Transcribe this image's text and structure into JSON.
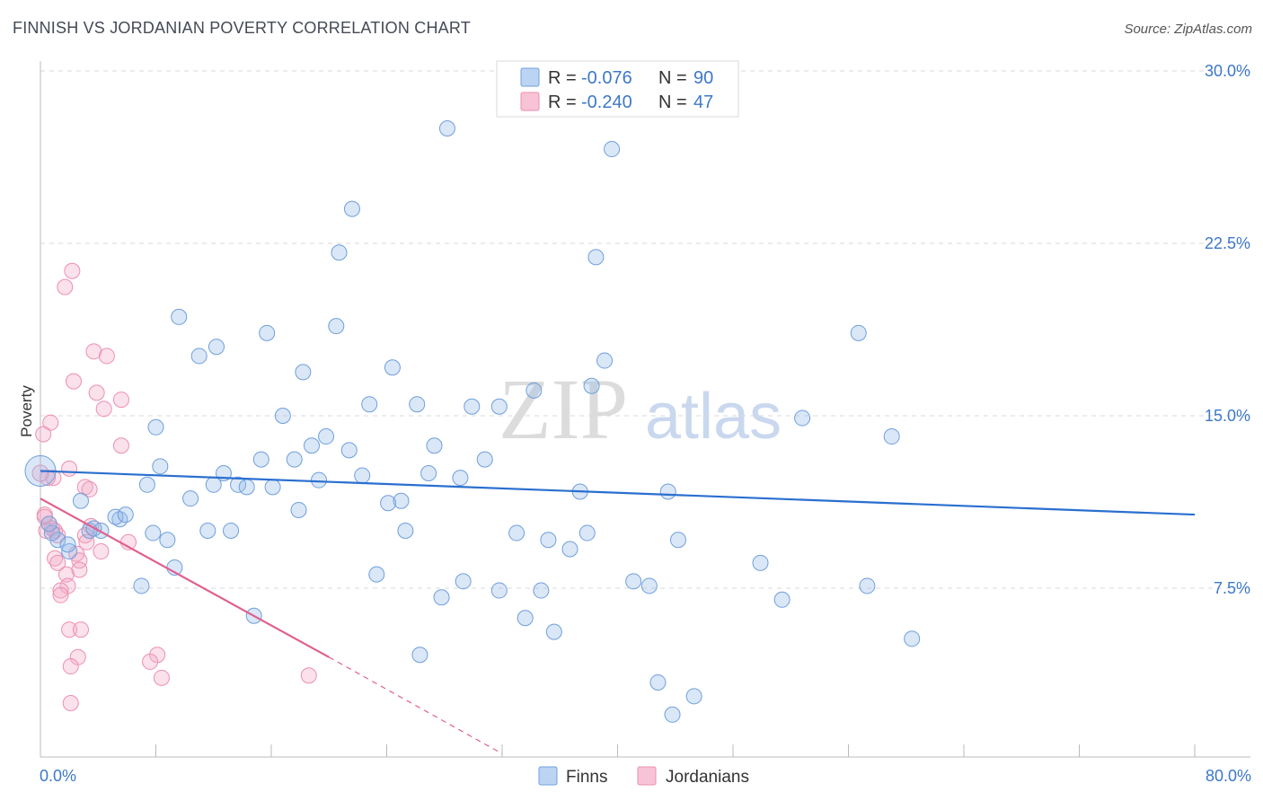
{
  "header": {
    "title": "FINNISH VS JORDANIAN POVERTY CORRELATION CHART",
    "source": "Source: ZipAtlas.com"
  },
  "watermark": {
    "zip": "ZIP",
    "atlas": "atlas"
  },
  "legend": {
    "r_label": "R =",
    "n_label": "N =",
    "finns": {
      "r": "-0.076",
      "n": "90"
    },
    "jordanians": {
      "r": "-0.240",
      "n": "47"
    }
  },
  "bottom_legend": {
    "finns": "Finns",
    "jordanians": "Jordanians"
  },
  "chart_data": {
    "type": "scatter",
    "title": "FINNISH VS JORDANIAN POVERTY CORRELATION CHART",
    "xlabel": "",
    "ylabel": "Poverty",
    "xlim": [
      0,
      80
    ],
    "ylim": [
      0,
      31
    ],
    "x_tick_labels": [
      "0.0%",
      "80.0%"
    ],
    "y_ticks": [
      7.5,
      15.0,
      22.5,
      30.0
    ],
    "y_tick_labels": [
      "7.5%",
      "15.0%",
      "22.5%",
      "30.0%"
    ],
    "colors": {
      "finns": "#6f9fdc",
      "jordanians": "#ec8fb0",
      "finns_line": "#2a6fcf",
      "jordanians_line": "#e0608e"
    },
    "series": [
      {
        "name": "Finns",
        "trend": {
          "x0": 0,
          "y0": 12.6,
          "x1": 80,
          "y1": 10.7
        },
        "points": [
          [
            28.2,
            27.5
          ],
          [
            39.6,
            26.6
          ],
          [
            21.6,
            24.0
          ],
          [
            20.7,
            22.1
          ],
          [
            38.5,
            21.9
          ],
          [
            9.6,
            19.3
          ],
          [
            15.7,
            18.6
          ],
          [
            20.5,
            18.9
          ],
          [
            56.7,
            18.6
          ],
          [
            12.2,
            18.0
          ],
          [
            11.0,
            17.6
          ],
          [
            39.1,
            17.4
          ],
          [
            18.2,
            16.9
          ],
          [
            24.4,
            17.1
          ],
          [
            38.2,
            16.3
          ],
          [
            34.2,
            16.1
          ],
          [
            22.8,
            15.5
          ],
          [
            26.1,
            15.5
          ],
          [
            29.9,
            15.4
          ],
          [
            31.8,
            15.4
          ],
          [
            16.8,
            15.0
          ],
          [
            52.8,
            14.9
          ],
          [
            8.0,
            14.5
          ],
          [
            19.8,
            14.1
          ],
          [
            59.0,
            14.1
          ],
          [
            18.8,
            13.7
          ],
          [
            21.4,
            13.5
          ],
          [
            27.3,
            13.7
          ],
          [
            15.3,
            13.1
          ],
          [
            17.6,
            13.1
          ],
          [
            30.8,
            13.1
          ],
          [
            8.3,
            12.8
          ],
          [
            12.7,
            12.5
          ],
          [
            22.3,
            12.4
          ],
          [
            26.9,
            12.5
          ],
          [
            29.1,
            12.3
          ],
          [
            7.4,
            12.0
          ],
          [
            12.0,
            12.0
          ],
          [
            13.7,
            12.0
          ],
          [
            14.3,
            11.9
          ],
          [
            16.1,
            11.9
          ],
          [
            19.3,
            12.2
          ],
          [
            37.4,
            11.7
          ],
          [
            43.5,
            11.7
          ],
          [
            2.8,
            11.3
          ],
          [
            10.4,
            11.4
          ],
          [
            24.1,
            11.2
          ],
          [
            25.0,
            11.3
          ],
          [
            17.9,
            10.9
          ],
          [
            5.5,
            10.5
          ],
          [
            5.2,
            10.6
          ],
          [
            5.9,
            10.7
          ],
          [
            4.2,
            10.0
          ],
          [
            3.4,
            10.0
          ],
          [
            1.2,
            9.6
          ],
          [
            0.8,
            9.9
          ],
          [
            7.8,
            9.9
          ],
          [
            11.6,
            10.0
          ],
          [
            13.2,
            10.0
          ],
          [
            25.3,
            10.0
          ],
          [
            33.0,
            9.9
          ],
          [
            37.9,
            9.9
          ],
          [
            8.8,
            9.6
          ],
          [
            35.2,
            9.6
          ],
          [
            44.2,
            9.6
          ],
          [
            36.7,
            9.2
          ],
          [
            2.0,
            9.1
          ],
          [
            9.3,
            8.4
          ],
          [
            49.9,
            8.6
          ],
          [
            23.3,
            8.1
          ],
          [
            7.0,
            7.6
          ],
          [
            29.3,
            7.8
          ],
          [
            41.1,
            7.8
          ],
          [
            42.2,
            7.6
          ],
          [
            31.8,
            7.4
          ],
          [
            34.7,
            7.4
          ],
          [
            27.8,
            7.1
          ],
          [
            51.4,
            7.0
          ],
          [
            57.3,
            7.6
          ],
          [
            14.8,
            6.3
          ],
          [
            33.6,
            6.2
          ],
          [
            35.6,
            5.6
          ],
          [
            60.4,
            5.3
          ],
          [
            26.3,
            4.6
          ],
          [
            42.8,
            3.4
          ],
          [
            45.3,
            2.8
          ],
          [
            43.8,
            2.0
          ],
          [
            3.7,
            10.1
          ],
          [
            1.9,
            9.4
          ],
          [
            0.6,
            10.3
          ]
        ]
      },
      {
        "name": "Jordanians",
        "trend": {
          "x0": 0,
          "y0": 11.4,
          "x1": 20,
          "y1": 4.5
        },
        "trend_dashed_to": {
          "x": 32,
          "y": 0.3
        },
        "points": [
          [
            2.2,
            21.3
          ],
          [
            1.7,
            20.6
          ],
          [
            3.7,
            17.8
          ],
          [
            4.6,
            17.6
          ],
          [
            2.3,
            16.5
          ],
          [
            3.9,
            16.0
          ],
          [
            5.6,
            15.7
          ],
          [
            4.4,
            15.3
          ],
          [
            0.7,
            14.7
          ],
          [
            0.2,
            14.2
          ],
          [
            5.6,
            13.7
          ],
          [
            2.0,
            12.7
          ],
          [
            0.9,
            12.3
          ],
          [
            0.5,
            12.3
          ],
          [
            3.1,
            11.9
          ],
          [
            3.4,
            11.8
          ],
          [
            0.3,
            10.7
          ],
          [
            0.6,
            10.3
          ],
          [
            0.8,
            10.1
          ],
          [
            1.0,
            10.0
          ],
          [
            3.5,
            10.2
          ],
          [
            0.4,
            10.0
          ],
          [
            1.2,
            9.8
          ],
          [
            3.1,
            9.8
          ],
          [
            3.2,
            9.5
          ],
          [
            6.1,
            9.5
          ],
          [
            4.2,
            9.1
          ],
          [
            2.5,
            9.0
          ],
          [
            1.0,
            8.8
          ],
          [
            2.7,
            8.7
          ],
          [
            1.2,
            8.6
          ],
          [
            2.7,
            8.3
          ],
          [
            1.8,
            8.1
          ],
          [
            1.9,
            7.6
          ],
          [
            1.4,
            7.4
          ],
          [
            1.4,
            7.2
          ],
          [
            2.0,
            5.7
          ],
          [
            2.8,
            5.7
          ],
          [
            2.6,
            4.5
          ],
          [
            8.1,
            4.6
          ],
          [
            7.6,
            4.3
          ],
          [
            2.1,
            4.1
          ],
          [
            8.4,
            3.6
          ],
          [
            18.6,
            3.7
          ],
          [
            2.1,
            2.5
          ],
          [
            0.0,
            12.5
          ],
          [
            0.3,
            10.6
          ]
        ]
      }
    ]
  }
}
